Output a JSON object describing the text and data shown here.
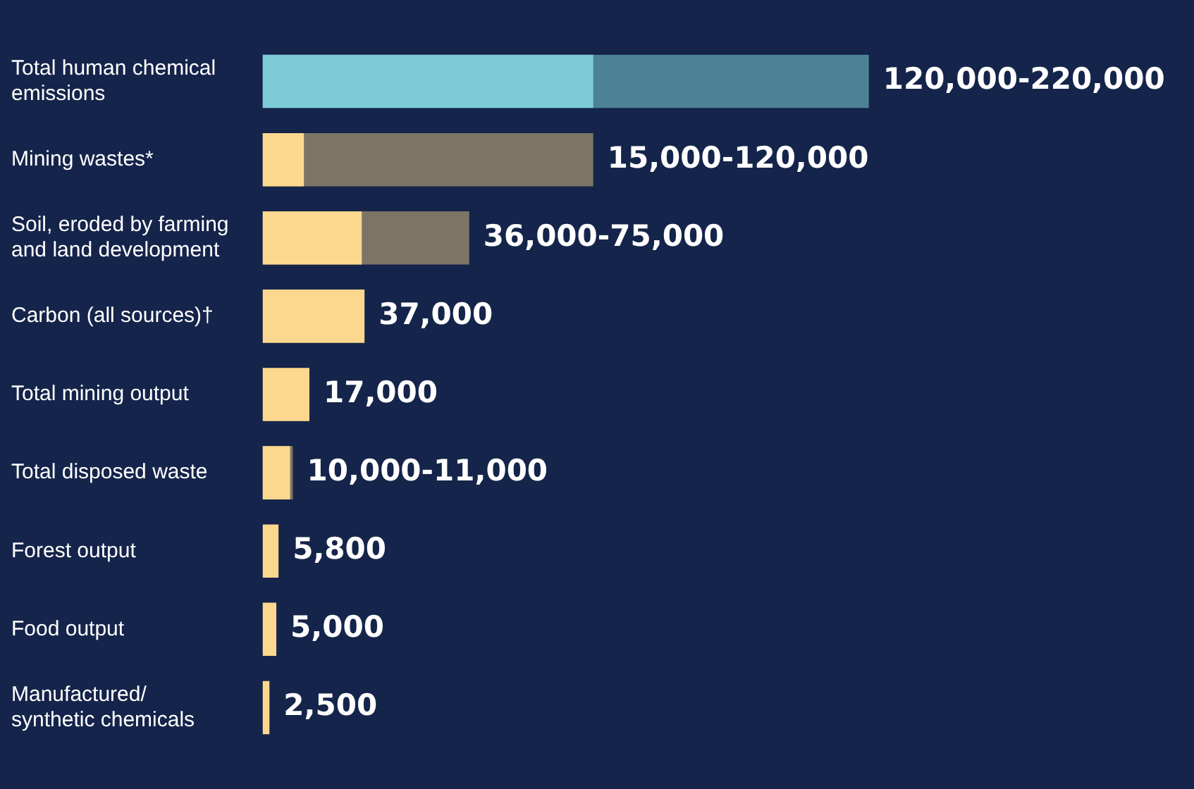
{
  "chart_data": {
    "type": "bar",
    "orientation": "horizontal",
    "legend": false,
    "grid": false,
    "tick_labels": "y",
    "categories": [
      "Total human chemical emissions",
      "Mining wastes*",
      "Soil, eroded by farming and land development",
      "Carbon (all sources)†",
      "Total mining output",
      "Total disposed waste",
      "Forest output",
      "Food output",
      "Manufactured/ synthetic chemicals"
    ],
    "series": [
      {
        "colors": [
          "#4d8196",
          "#7c7565",
          "#7c7565",
          "#fcd88e",
          "#fcd88e",
          "#7c7565",
          "#fcd88e",
          "#fcd88e",
          "#fcd88e"
        ],
        "values": [
          220000,
          120000,
          75000,
          37000,
          17000,
          11000,
          5800,
          5000,
          2500
        ],
        "value_labels": [
          "120,000-220,000",
          "15,000-120,000",
          "36,000-75,000",
          "37,000",
          "17,000",
          "10,000-11,000",
          "5,800",
          "5,000",
          "2,500"
        ]
      },
      {
        "colors": [
          "#7ecbd8",
          "#fcd88e",
          "#fcd88e",
          null,
          null,
          "#fcd88e",
          null,
          null,
          null
        ],
        "values": [
          120000,
          15000,
          36000,
          null,
          null,
          10000,
          null,
          null,
          null
        ]
      }
    ]
  }
}
